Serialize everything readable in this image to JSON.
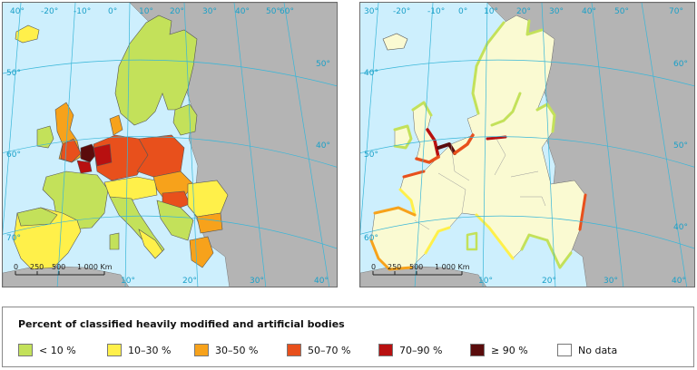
{
  "maps": [
    {
      "id": "left",
      "lat_labels": [
        "40°",
        "50°",
        "60°",
        "70°",
        "60°",
        "50°",
        "40°"
      ],
      "lon_labels": [
        "-20°",
        "-10°",
        "0°",
        "10°",
        "20°",
        "30°",
        "40°",
        "50°",
        "10°",
        "20°",
        "30°",
        "40°"
      ],
      "scale": {
        "ticks": [
          "0",
          "250",
          "500",
          "1 000 Km"
        ]
      }
    },
    {
      "id": "right",
      "lat_labels": [
        "30°",
        "40°",
        "50°",
        "60°",
        "70°",
        "60°",
        "50°",
        "40°"
      ],
      "lon_labels": [
        "-20°",
        "-10°",
        "0°",
        "10°",
        "20°",
        "30°",
        "40°",
        "50°",
        "10°",
        "20°",
        "30°",
        "40°"
      ],
      "scale": {
        "ticks": [
          "0",
          "250",
          "500",
          "1 000 Km"
        ]
      }
    }
  ],
  "legend": {
    "title": "Percent of classified heavily modified and artificial bodies",
    "items": [
      {
        "label": "< 10 %",
        "color": "#c3e15a"
      },
      {
        "label": "10–30 %",
        "color": "#fff04a"
      },
      {
        "label": "30–50 %",
        "color": "#f7a21b"
      },
      {
        "label": "50–70 %",
        "color": "#e8501c"
      },
      {
        "label": "70–90 %",
        "color": "#b81010"
      },
      {
        "label": "≥ 90 %",
        "color": "#5a0c0c"
      },
      {
        "label": "No data",
        "color": "#ffffff"
      }
    ]
  },
  "colors": {
    "sea": "#cdeffd",
    "land_non_eea": "#b4b4b4",
    "land_eea_right": "#fafad2",
    "graticule": "#38b6d8"
  }
}
